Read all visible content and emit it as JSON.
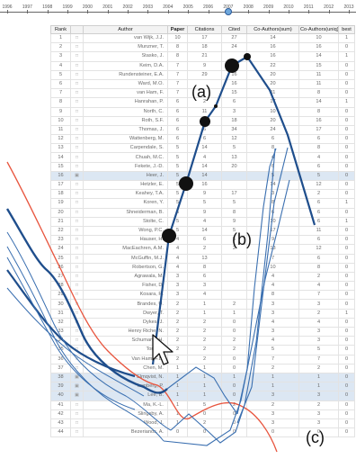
{
  "timeline": {
    "years": [
      "1996",
      "1997",
      "1998",
      "1999",
      "2000",
      "2001",
      "2002",
      "2003",
      "2004",
      "2005",
      "2006",
      "2007",
      "2008",
      "2009",
      "2010",
      "2011",
      "2012",
      "2013"
    ],
    "selected_year": "2007"
  },
  "table": {
    "headers": [
      "Rank",
      "",
      "Author",
      "Paper",
      "Citations",
      "Cited",
      "Co-Authors(sum)",
      "Co-Authors(uniq)",
      "best"
    ],
    "rows": [
      {
        "rank": "1",
        "author": "van Wijk, J.J.",
        "paper": "10",
        "citations": "17",
        "cited": "27",
        "co_sum": "14",
        "co_uniq": "10",
        "best": "1"
      },
      {
        "rank": "2",
        "author": "Munzner, T.",
        "paper": "8",
        "citations": "18",
        "cited": "24",
        "co_sum": "16",
        "co_uniq": "16",
        "best": "0"
      },
      {
        "rank": "3",
        "author": "Stasko, J.",
        "paper": "8",
        "citations": "21",
        "cited": "",
        "co_sum": "16",
        "co_uniq": "14",
        "best": "1"
      },
      {
        "rank": "4",
        "author": "Keim, D.A.",
        "paper": "7",
        "citations": "9",
        "cited": "",
        "co_sum": "22",
        "co_uniq": "15",
        "best": "0"
      },
      {
        "rank": "5",
        "author": "Rundensteiner, E.A.",
        "paper": "7",
        "citations": "29",
        "cited": "16",
        "co_sum": "20",
        "co_uniq": "11",
        "best": "0"
      },
      {
        "rank": "6",
        "author": "Ward, M.O.",
        "paper": "7",
        "citations": "",
        "cited": "16",
        "co_sum": "20",
        "co_uniq": "11",
        "best": "0"
      },
      {
        "rank": "7",
        "author": "van Ham, F.",
        "paper": "7",
        "citations": "",
        "cited": "15",
        "co_sum": "11",
        "co_uniq": "8",
        "best": "0"
      },
      {
        "rank": "8",
        "author": "Hanrahan, P.",
        "paper": "6",
        "citations": "2",
        "cited": "6",
        "co_sum": "17",
        "co_uniq": "14",
        "best": "1"
      },
      {
        "rank": "9",
        "author": "North, C.",
        "paper": "6",
        "citations": "11",
        "cited": "3",
        "co_sum": "10",
        "co_uniq": "8",
        "best": "0"
      },
      {
        "rank": "10",
        "author": "Roth, S.F.",
        "paper": "6",
        "citations": "5",
        "cited": "18",
        "co_sum": "20",
        "co_uniq": "16",
        "best": "0"
      },
      {
        "rank": "11",
        "author": "Thomas, J.",
        "paper": "6",
        "citations": "6",
        "cited": "34",
        "co_sum": "24",
        "co_uniq": "17",
        "best": "0"
      },
      {
        "rank": "12",
        "author": "Wattenberg, M.",
        "paper": "6",
        "citations": "6",
        "cited": "12",
        "co_sum": "6",
        "co_uniq": "6",
        "best": "0"
      },
      {
        "rank": "13",
        "author": "Carpendale, S.",
        "paper": "5",
        "citations": "14",
        "cited": "5",
        "co_sum": "8",
        "co_uniq": "8",
        "best": "0"
      },
      {
        "rank": "14",
        "author": "Chuah, M.C.",
        "paper": "5",
        "citations": "4",
        "cited": "13",
        "co_sum": "4",
        "co_uniq": "4",
        "best": "0"
      },
      {
        "rank": "15",
        "author": "Fekete, J.-D.",
        "paper": "5",
        "citations": "14",
        "cited": "20",
        "co_sum": "6",
        "co_uniq": "6",
        "best": "0"
      },
      {
        "rank": "16",
        "author": "Heer, J.",
        "paper": "5",
        "citations": "14",
        "cited": "",
        "co_sum": "5",
        "co_uniq": "5",
        "best": "0"
      },
      {
        "rank": "17",
        "author": "Hetzler, E.",
        "paper": "5",
        "citations": "16",
        "cited": "",
        "co_sum": "14",
        "co_uniq": "12",
        "best": "0"
      },
      {
        "rank": "18",
        "author": "Keahey, T.A.",
        "paper": "5",
        "citations": "9",
        "cited": "17",
        "co_sum": "3",
        "co_uniq": "2",
        "best": "0"
      },
      {
        "rank": "19",
        "author": "Koren, Y.",
        "paper": "5",
        "citations": "5",
        "cited": "5",
        "co_sum": "8",
        "co_uniq": "6",
        "best": "1"
      },
      {
        "rank": "20",
        "author": "Shneiderman, B.",
        "paper": "5",
        "citations": "9",
        "cited": "8",
        "co_sum": "6",
        "co_uniq": "6",
        "best": "0"
      },
      {
        "rank": "21",
        "author": "Stolte, C.",
        "paper": "5",
        "citations": "4",
        "cited": "9",
        "co_sum": "10",
        "co_uniq": "6",
        "best": "1"
      },
      {
        "rank": "22",
        "author": "Wong, P.C.",
        "paper": "5",
        "citations": "14",
        "cited": "5",
        "co_sum": "17",
        "co_uniq": "11",
        "best": "0"
      },
      {
        "rank": "23",
        "author": "Hauser, H.",
        "paper": "4",
        "citations": "6",
        "cited": "5",
        "co_sum": "9",
        "co_uniq": "6",
        "best": "0"
      },
      {
        "rank": "24",
        "author": "MacEachren, A.M.",
        "paper": "4",
        "citations": "2",
        "cited": "2",
        "co_sum": "13",
        "co_uniq": "12",
        "best": "0"
      },
      {
        "rank": "25",
        "author": "McGuffin, M.J.",
        "paper": "4",
        "citations": "13",
        "cited": "",
        "co_sum": "7",
        "co_uniq": "6",
        "best": "0"
      },
      {
        "rank": "26",
        "author": "Robertson, G.",
        "paper": "4",
        "citations": "8",
        "cited": "",
        "co_sum": "10",
        "co_uniq": "8",
        "best": "0"
      },
      {
        "rank": "27",
        "author": "Agrawala, M.",
        "paper": "3",
        "citations": "6",
        "cited": "",
        "co_sum": "4",
        "co_uniq": "2",
        "best": "0"
      },
      {
        "rank": "28",
        "author": "Fisher, D.",
        "paper": "3",
        "citations": "3",
        "cited": "",
        "co_sum": "4",
        "co_uniq": "4",
        "best": "0"
      },
      {
        "rank": "29",
        "author": "Kosara, R.",
        "paper": "3",
        "citations": "4",
        "cited": "",
        "co_sum": "8",
        "co_uniq": "7",
        "best": "0"
      },
      {
        "rank": "30",
        "author": "Brandes, U.",
        "paper": "2",
        "citations": "1",
        "cited": "2",
        "co_sum": "3",
        "co_uniq": "3",
        "best": "0"
      },
      {
        "rank": "31",
        "author": "Dwyer, T.",
        "paper": "2",
        "citations": "1",
        "cited": "1",
        "co_sum": "3",
        "co_uniq": "2",
        "best": "1"
      },
      {
        "rank": "32",
        "author": "Dykes, J.",
        "paper": "2",
        "citations": "2",
        "cited": "0",
        "co_sum": "4",
        "co_uniq": "4",
        "best": "0"
      },
      {
        "rank": "33",
        "author": "Henry Riche, N.",
        "paper": "2",
        "citations": "2",
        "cited": "0",
        "co_sum": "3",
        "co_uniq": "3",
        "best": "0"
      },
      {
        "rank": "34",
        "author": "Schumann, H.",
        "paper": "2",
        "citations": "2",
        "cited": "2",
        "co_sum": "4",
        "co_uniq": "3",
        "best": "0"
      },
      {
        "rank": "35",
        "author": "Tory, M.",
        "paper": "2",
        "citations": "2",
        "cited": "2",
        "co_sum": "5",
        "co_uniq": "5",
        "best": "0"
      },
      {
        "rank": "36",
        "author": "Van Ham, F.B.",
        "paper": "2",
        "citations": "2",
        "cited": "0",
        "co_sum": "7",
        "co_uniq": "7",
        "best": "0"
      },
      {
        "rank": "37",
        "author": "Chen, M.",
        "paper": "1",
        "citations": "1",
        "cited": "0",
        "co_sum": "2",
        "co_uniq": "2",
        "best": "0"
      },
      {
        "rank": "38",
        "author": "Elmqvist, N.",
        "paper": "1",
        "citations": "1",
        "cited": "1",
        "co_sum": "1",
        "co_uniq": "1",
        "best": "0"
      },
      {
        "rank": "39",
        "author": "Isenberg, P.",
        "paper": "1",
        "citations": "1",
        "cited": "0",
        "co_sum": "1",
        "co_uniq": "1",
        "best": "0"
      },
      {
        "rank": "40",
        "author": "Lee, B.",
        "paper": "1",
        "citations": "1",
        "cited": "0",
        "co_sum": "3",
        "co_uniq": "3",
        "best": "0"
      },
      {
        "rank": "41",
        "author": "Ma, K.-L.",
        "paper": "1",
        "citations": "5",
        "cited": "2",
        "co_sum": "2",
        "co_uniq": "2",
        "best": "0"
      },
      {
        "rank": "42",
        "author": "Slingsby, A.",
        "paper": "1",
        "citations": "0",
        "cited": "0",
        "co_sum": "3",
        "co_uniq": "3",
        "best": "0"
      },
      {
        "rank": "43",
        "author": "Wood, J.",
        "paper": "1",
        "citations": "2",
        "cited": "0",
        "co_sum": "3",
        "co_uniq": "3",
        "best": "0"
      },
      {
        "rank": "44",
        "author": "Bezerianos, A.",
        "paper": "0",
        "citations": "0",
        "cited": "0",
        "co_sum": "0",
        "co_uniq": "0",
        "best": "0"
      }
    ]
  },
  "labels": {
    "a": "(a)",
    "b": "(b)",
    "c": "(c)"
  },
  "colors": {
    "primary_line": "#1f4e8c",
    "secondary_line": "#3a6fb0",
    "highlight_line": "#e8553e",
    "selected_row": "#dce7f3",
    "knob": "#6fa8dc"
  },
  "icons": {
    "row_checkbox": "checkbox-icon",
    "cursor": "cursor-arrow-icon",
    "year_handle": "slider-handle-icon"
  },
  "selected_rows": [
    16,
    38,
    39,
    40
  ]
}
